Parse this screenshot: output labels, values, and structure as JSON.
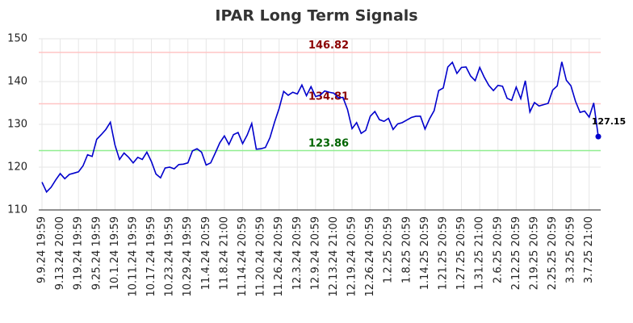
{
  "chart_data": {
    "type": "line",
    "title": "IPAR Long Term Signals",
    "x": [
      "9.9.24 19:59",
      null,
      null,
      null,
      "9.13.24 20:00",
      null,
      null,
      null,
      "9.19.24 19:59",
      null,
      null,
      null,
      "9.25.24 19:59",
      null,
      null,
      null,
      "10.1.24 19:59",
      null,
      null,
      null,
      "10.11.24 19:59",
      null,
      null,
      null,
      "10.17.24 19:59",
      null,
      null,
      null,
      "10.23.24 19:59",
      null,
      null,
      null,
      "10.29.24 19:59",
      null,
      null,
      null,
      "11.4.24 20:59",
      null,
      null,
      null,
      "11.8.24 21:00",
      null,
      null,
      null,
      "11.14.24 20:59",
      null,
      null,
      null,
      "11.20.24 20:59",
      null,
      null,
      null,
      "11.26.24 20:59",
      null,
      null,
      null,
      "12.3.24 20:59",
      null,
      null,
      null,
      "12.9.24 20:59",
      null,
      null,
      null,
      "12.13.24 21:00",
      null,
      null,
      null,
      "12.19.24 20:59",
      null,
      null,
      null,
      "12.26.24 20:59",
      null,
      null,
      null,
      "1.2.25 20:59",
      null,
      null,
      null,
      "1.8.25 20:59",
      null,
      null,
      null,
      "1.14.25 20:59",
      null,
      null,
      null,
      "1.21.25 20:59",
      null,
      null,
      null,
      "1.27.25 20:59",
      null,
      null,
      null,
      "1.31.25 21:00",
      null,
      null,
      null,
      "2.6.25 20:59",
      null,
      null,
      null,
      "2.12.25 20:59",
      null,
      null,
      null,
      "2.19.25 20:59",
      null,
      null,
      null,
      "2.25.25 20:59",
      null,
      null,
      null,
      "3.3.25 20:59",
      null,
      null,
      null,
      "3.7.25 21:00",
      null,
      null
    ],
    "series": [
      {
        "color": "#0000cc",
        "values": [
          116.5,
          114.2,
          115.3,
          117,
          118.5,
          117.3,
          118.3,
          118.6,
          118.9,
          120.3,
          122.9,
          122.5,
          126.5,
          127.6,
          128.8,
          130.5,
          125.2,
          121.8,
          123.3,
          122.3,
          121,
          122.3,
          121.8,
          123.5,
          121.3,
          118.4,
          117.5,
          119.8,
          120,
          119.6,
          120.6,
          120.7,
          121,
          123.8,
          124.3,
          123.5,
          120.5,
          121,
          123.3,
          125.7,
          127.3,
          125.3,
          127.6,
          128.1,
          125.5,
          127.5,
          130.2,
          124.2,
          124.3,
          124.6,
          126.9,
          130.5,
          133.7,
          137.7,
          136.8,
          137.5,
          137.1,
          139.2,
          136.7,
          138.8,
          136.5,
          136.8,
          137.8,
          137.5,
          137.3,
          136.2,
          136.3,
          133.5,
          129,
          130.4,
          127.9,
          128.6,
          131.9,
          133,
          131.1,
          130.7,
          131.4,
          128.8,
          130.1,
          130.4,
          131,
          131.6,
          131.9,
          131.9,
          128.9,
          131.3,
          133.2,
          137.9,
          138.5,
          143.4,
          144.5,
          141.9,
          143.3,
          143.4,
          141.3,
          140.2,
          143.3,
          141,
          139.1,
          137.9,
          139.1,
          138.9,
          136.1,
          135.6,
          138.7,
          136,
          140.2,
          132.9,
          135.1,
          134.3,
          134.6,
          134.9,
          138,
          139,
          144.6,
          140.3,
          139,
          135.4,
          132.8,
          133.1,
          131.7,
          135,
          127.15
        ]
      }
    ],
    "hlines": [
      {
        "value": 146.82,
        "color": "#ffc4c4",
        "label_color": "#8b0000"
      },
      {
        "value": 134.81,
        "color": "#ffc4c4",
        "label_color": "#8b0000"
      },
      {
        "value": 123.86,
        "color": "#90ee90",
        "label_color": "#006400"
      }
    ],
    "ylim": [
      110,
      150
    ],
    "yticks": [
      110,
      120,
      130,
      140,
      150
    ],
    "grid": true
  }
}
